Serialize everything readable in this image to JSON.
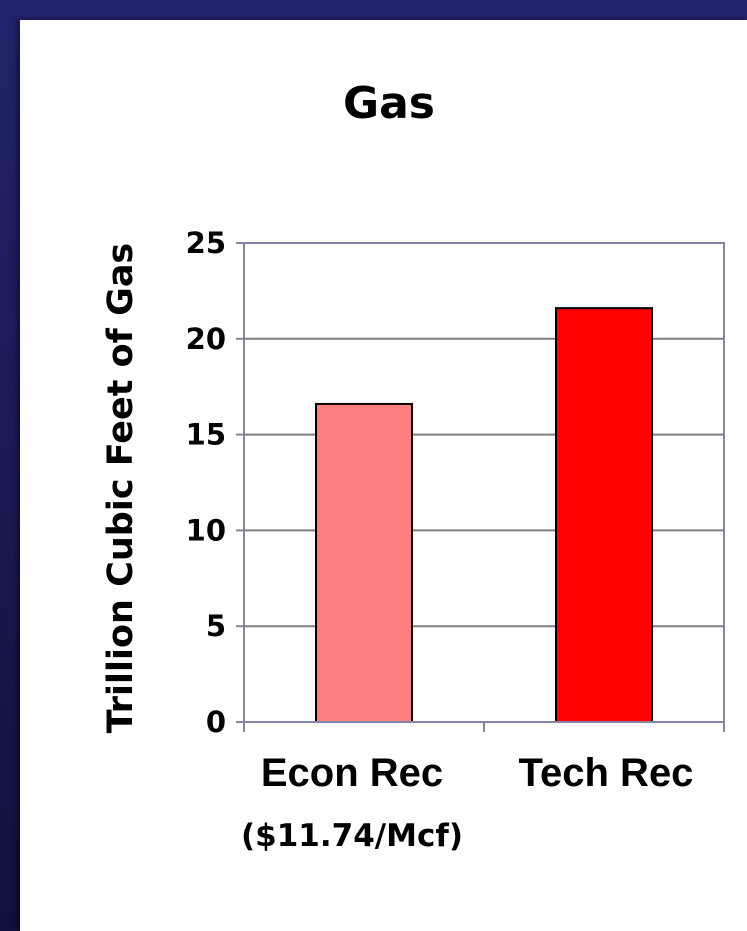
{
  "chart_data": {
    "type": "bar",
    "title": "Gas",
    "xlabel": "",
    "ylabel": "Trillion Cubic Feet of Gas",
    "categories": [
      "Econ Rec",
      "Tech Rec"
    ],
    "category_sublabels": [
      "($11.74/Mcf)",
      ""
    ],
    "values": [
      16.6,
      21.6
    ],
    "bar_colors": [
      "#ff8080",
      "#ff0000"
    ],
    "ylim": [
      0,
      25
    ],
    "yticks": [
      0,
      5,
      10,
      15,
      20,
      25
    ],
    "grid": true,
    "legend": "none"
  },
  "colors": {
    "background": "#1c1c5a",
    "panel": "#ffffff",
    "gridline": "#7f7f7f",
    "axis": "#8585a3"
  }
}
